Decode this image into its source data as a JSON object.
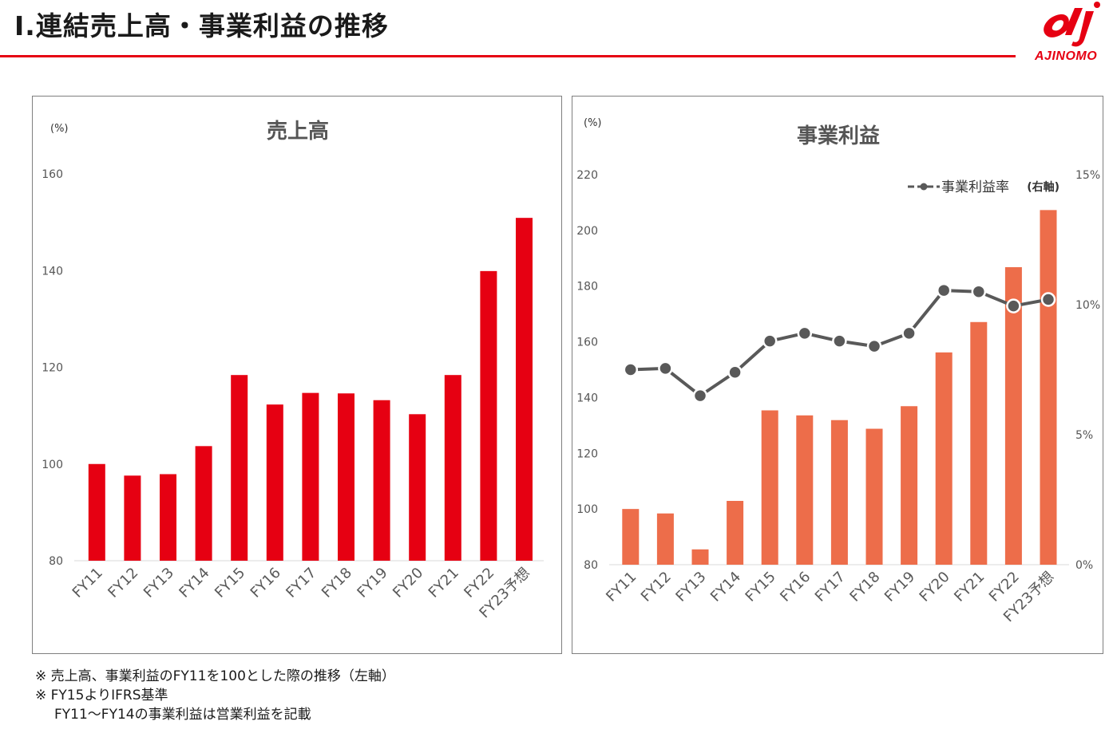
{
  "header": {
    "title": "Ⅰ.連結売上高・事業利益の推移",
    "logo_text": "AJINOMO"
  },
  "colors": {
    "brand_red": "#e60012",
    "sales_bar": "#e60012",
    "profit_bar": "#ed6d4a",
    "line": "#595959"
  },
  "chart_data": [
    {
      "type": "bar",
      "title": "売上高",
      "y_unit_label": "(%)",
      "categories": [
        "FY11",
        "FY12",
        "FY13",
        "FY14",
        "FY15",
        "FY16",
        "FY17",
        "FY18",
        "FY19",
        "FY20",
        "FY21",
        "FY22",
        "FY23予想"
      ],
      "series": [
        {
          "values": [
            100,
            97.6,
            97.9,
            103.7,
            118.4,
            112.3,
            114.7,
            114.6,
            113.2,
            110.3,
            118.4,
            139.9,
            150.9
          ]
        }
      ],
      "ylim": [
        80,
        160
      ],
      "yticks": [
        80,
        100,
        120,
        140,
        160
      ],
      "grid": false,
      "legend": "none"
    },
    {
      "type": "bar+line",
      "title": "事業利益",
      "y_unit_label": "(%)",
      "categories": [
        "FY11",
        "FY12",
        "FY13",
        "FY14",
        "FY15",
        "FY16",
        "FY17",
        "FY18",
        "FY19",
        "FY20",
        "FY21",
        "FY22",
        "FY23予想"
      ],
      "series": [
        {
          "type": "bar",
          "axis": "left",
          "values": [
            100,
            98.4,
            85.5,
            102.9,
            135.4,
            133.6,
            131.9,
            128.8,
            136.9,
            156.2,
            167.1,
            186.8,
            207.3
          ]
        },
        {
          "name": "事業利益率",
          "name_suffix": "(右軸)",
          "type": "line",
          "axis": "right",
          "values": [
            7.5,
            7.55,
            6.5,
            7.4,
            8.6,
            8.9,
            8.6,
            8.4,
            8.9,
            10.55,
            10.5,
            9.95,
            10.2
          ]
        }
      ],
      "ylim": [
        80,
        220
      ],
      "yticks": [
        80,
        100,
        120,
        140,
        160,
        180,
        200,
        220
      ],
      "y2lim": [
        0,
        15
      ],
      "y2ticks": [
        "0%",
        "5%",
        "10%",
        "15%"
      ],
      "grid": false,
      "legend": "top-right"
    }
  ],
  "notes": [
    "※ 売上高、事業利益のFY11を100とした際の推移（左軸）",
    "※ FY15よりIFRS基準",
    "FY11～FY14の事業利益は営業利益を記載"
  ]
}
